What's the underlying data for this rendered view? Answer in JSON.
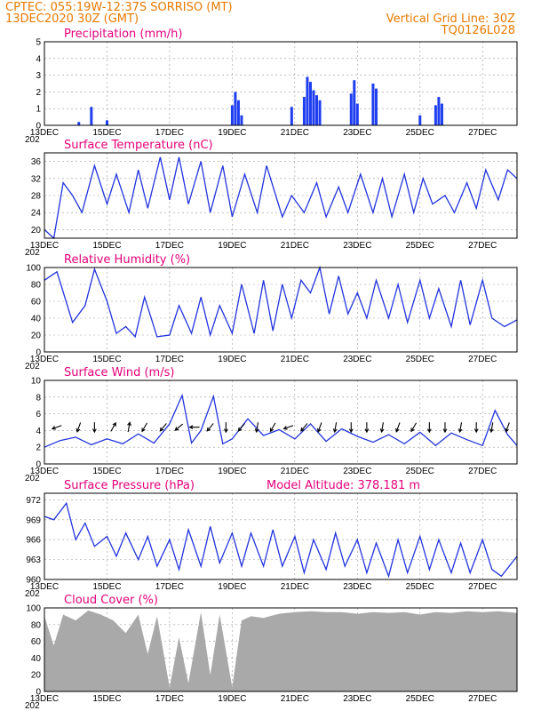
{
  "header": {
    "line1": "CPTEC:  055:19W-12:37S  SORRISO (MT)",
    "line2": "13DEC2020 30Z (GMT)",
    "right1": "Vertical Grid Line: 30Z",
    "right2": "TQ0126L028"
  },
  "x_tick_labels": [
    "13DEC",
    "15DEC",
    "17DEC",
    "19DEC",
    "21DEC",
    "23DEC",
    "25DEC",
    "27DEC"
  ],
  "y_axis_extra_label": "202",
  "colors": {
    "series": "#2233dd",
    "bars": "#1f3ef0",
    "cloud": "#a9a9a9",
    "title": "#e3007a",
    "header": "#e87a00"
  },
  "chart_data": [
    {
      "type": "bar",
      "title": "Precipitation (mm/h)",
      "x_unit": "day of Dec 2020",
      "ylim": [
        0,
        5
      ],
      "yticks": [
        "0",
        "1",
        "2",
        "3",
        "4",
        "5"
      ],
      "grid": true,
      "x": [
        14.1,
        14.5,
        15.0,
        19.0,
        19.1,
        19.2,
        19.3,
        20.9,
        21.3,
        21.4,
        21.5,
        21.6,
        21.7,
        21.8,
        22.8,
        22.9,
        23.0,
        23.5,
        23.6,
        25.0,
        25.5,
        25.6,
        25.7
      ],
      "values": [
        0.2,
        1.1,
        0.3,
        1.2,
        2.0,
        1.5,
        0.6,
        1.1,
        1.7,
        2.9,
        2.6,
        2.1,
        1.8,
        1.5,
        1.9,
        2.7,
        1.3,
        2.5,
        2.2,
        0.6,
        1.2,
        1.7,
        1.3
      ]
    },
    {
      "type": "line",
      "title": "Surface Temperature (nC)",
      "x_unit": "day of Dec 2020",
      "ylim": [
        18,
        38
      ],
      "yticks": [
        "20",
        "24",
        "28",
        "32",
        "36"
      ],
      "grid": true,
      "x": [
        13.0,
        13.3,
        13.6,
        13.9,
        14.2,
        14.6,
        15.0,
        15.3,
        15.7,
        16.0,
        16.3,
        16.7,
        17.0,
        17.3,
        17.6,
        18.0,
        18.3,
        18.7,
        19.0,
        19.4,
        19.8,
        20.1,
        20.6,
        20.9,
        21.3,
        21.7,
        22.0,
        22.4,
        22.7,
        23.1,
        23.5,
        23.8,
        24.1,
        24.5,
        24.8,
        25.1,
        25.4,
        25.8,
        26.1,
        26.5,
        26.8,
        27.1,
        27.5,
        27.8,
        28.1
      ],
      "values": [
        20,
        18,
        31,
        28,
        24,
        35,
        26,
        33,
        24,
        34,
        25,
        37,
        27,
        37,
        26,
        36,
        24,
        35,
        23,
        33,
        24,
        35,
        23,
        28,
        24,
        31,
        23,
        30,
        24,
        33,
        24,
        32,
        23,
        33,
        24,
        32,
        26,
        28,
        24,
        31,
        25,
        34,
        27,
        34,
        32
      ]
    },
    {
      "type": "line",
      "title": "Relative Humidity (%)",
      "x_unit": "day of Dec 2020",
      "ylim": [
        0,
        100
      ],
      "yticks": [
        "0",
        "20",
        "40",
        "60",
        "80",
        "100"
      ],
      "grid": true,
      "x": [
        13.0,
        13.4,
        13.9,
        14.3,
        14.6,
        15.0,
        15.3,
        15.6,
        15.9,
        16.2,
        16.6,
        17.0,
        17.3,
        17.7,
        18.0,
        18.3,
        18.6,
        19.0,
        19.3,
        19.7,
        20.0,
        20.3,
        20.6,
        20.9,
        21.2,
        21.5,
        21.8,
        22.1,
        22.4,
        22.7,
        23.0,
        23.3,
        23.6,
        24.0,
        24.3,
        24.6,
        25.0,
        25.3,
        25.6,
        26.0,
        26.3,
        26.6,
        27.0,
        27.3,
        27.7,
        28.1
      ],
      "values": [
        85,
        95,
        35,
        55,
        98,
        60,
        22,
        30,
        18,
        65,
        18,
        20,
        55,
        22,
        65,
        20,
        55,
        22,
        80,
        22,
        85,
        25,
        80,
        40,
        85,
        70,
        100,
        45,
        90,
        45,
        70,
        40,
        85,
        40,
        80,
        35,
        85,
        40,
        75,
        30,
        85,
        32,
        85,
        40,
        30,
        38
      ]
    },
    {
      "type": "line",
      "title": "Surface Wind (m/s)",
      "x_unit": "day of Dec 2020",
      "ylim": [
        0,
        10
      ],
      "yticks": [
        "0",
        "2",
        "4",
        "6",
        "8",
        "10"
      ],
      "grid": true,
      "x": [
        13.0,
        13.5,
        14.0,
        14.5,
        15.0,
        15.5,
        16.0,
        16.5,
        17.0,
        17.4,
        17.7,
        18.0,
        18.4,
        18.7,
        19.0,
        19.5,
        20.0,
        20.5,
        21.0,
        21.5,
        22.0,
        22.5,
        23.0,
        23.5,
        24.0,
        24.5,
        25.0,
        25.5,
        26.0,
        26.5,
        27.0,
        27.4,
        27.8,
        28.1
      ],
      "values": [
        2,
        2.8,
        3.2,
        2.3,
        3.0,
        2.4,
        3.6,
        2.5,
        4.8,
        8.2,
        2.5,
        4.0,
        8.1,
        2.4,
        3.0,
        5.4,
        3.4,
        4.1,
        3.0,
        4.8,
        2.7,
        4.2,
        3.3,
        2.6,
        3.5,
        2.4,
        3.8,
        2.2,
        3.7,
        2.9,
        2.2,
        6.4,
        3.5,
        2.2
      ],
      "arrows_x": [
        13.4,
        14.1,
        14.6,
        15.2,
        15.7,
        16.2,
        16.8,
        17.3,
        17.8,
        18.3,
        18.8,
        19.3,
        19.8,
        20.3,
        20.8,
        21.3,
        21.8,
        22.3,
        22.8,
        23.3,
        23.8,
        24.3,
        24.8,
        25.3,
        25.8,
        26.3,
        26.8,
        27.3,
        27.8
      ],
      "arrows_dir_deg": [
        200,
        250,
        270,
        60,
        80,
        240,
        230,
        220,
        180,
        230,
        270,
        230,
        260,
        240,
        200,
        230,
        250,
        260,
        270,
        270,
        260,
        250,
        240,
        270,
        270,
        260,
        270,
        260,
        250
      ]
    },
    {
      "type": "line",
      "title": "Surface Pressure (hPa)",
      "annotation": "Model Altitude: 378.181 m",
      "x_unit": "day of Dec 2020",
      "ylim": [
        960,
        973
      ],
      "yticks": [
        "960",
        "963",
        "966",
        "969",
        "972"
      ],
      "grid": true,
      "x": [
        13.0,
        13.3,
        13.7,
        14.0,
        14.3,
        14.6,
        15.0,
        15.3,
        15.6,
        16.0,
        16.3,
        16.6,
        17.0,
        17.3,
        17.6,
        18.0,
        18.3,
        18.6,
        19.0,
        19.3,
        19.6,
        20.0,
        20.3,
        20.6,
        21.0,
        21.3,
        21.6,
        22.0,
        22.3,
        22.6,
        23.0,
        23.3,
        23.6,
        24.0,
        24.3,
        24.6,
        25.0,
        25.3,
        25.6,
        26.0,
        26.3,
        26.6,
        27.0,
        27.3,
        27.6,
        28.1
      ],
      "values": [
        969.5,
        969,
        971.5,
        966,
        968.5,
        965,
        966.5,
        963.5,
        967,
        963,
        966.5,
        962,
        966,
        961.5,
        967.5,
        962,
        968,
        962.5,
        967,
        962,
        967,
        962,
        967.5,
        962,
        966.5,
        961,
        966,
        961.5,
        967,
        962,
        966,
        961,
        965.5,
        960.5,
        966,
        961,
        966.5,
        961.5,
        966,
        961,
        965.5,
        961,
        966,
        961.5,
        960.5,
        963.5
      ]
    },
    {
      "type": "area",
      "title": "Cloud Cover (%)",
      "x_unit": "day of Dec 2020",
      "ylim": [
        0,
        100
      ],
      "yticks": [
        "0",
        "20",
        "40",
        "60",
        "80",
        "100"
      ],
      "grid": true,
      "x": [
        13.0,
        13.3,
        13.6,
        14.0,
        14.4,
        14.8,
        15.2,
        15.6,
        16.0,
        16.3,
        16.6,
        17.0,
        17.3,
        17.6,
        18.0,
        18.3,
        18.6,
        19.0,
        19.3,
        19.6,
        20.0,
        20.5,
        21.0,
        21.5,
        22.0,
        22.5,
        23.0,
        23.5,
        24.0,
        24.5,
        25.0,
        25.5,
        26.0,
        26.5,
        27.0,
        27.5,
        28.1
      ],
      "values": [
        90,
        55,
        92,
        85,
        97,
        92,
        85,
        70,
        92,
        45,
        90,
        5,
        65,
        10,
        95,
        20,
        92,
        5,
        85,
        90,
        88,
        93,
        95,
        96,
        95,
        95,
        93,
        95,
        94,
        95,
        92,
        95,
        94,
        96,
        95,
        96,
        94
      ]
    }
  ]
}
